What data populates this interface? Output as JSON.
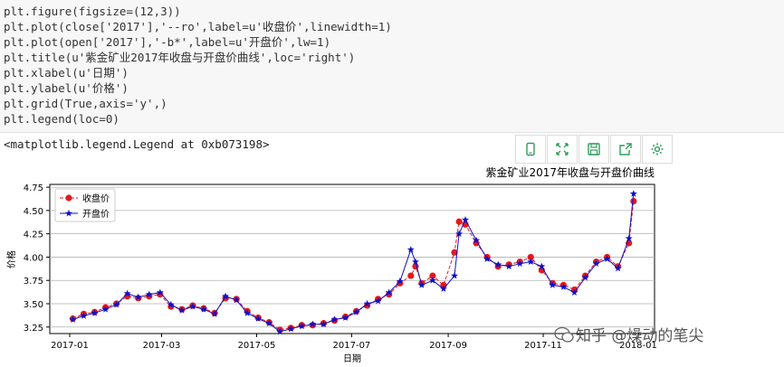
{
  "code": {
    "lines": [
      "plt.figure(figsize=(12,3))",
      "plt.plot(close['2017'],'--ro',label=u'收盘价',linewidth=1)",
      "plt.plot(open['2017'],'-b*',label=u'开盘价',lw=1)",
      "plt.title(u'紫金矿业2017年收盘与开盘价曲线',loc='right')",
      "plt.xlabel(u'日期')",
      "plt.ylabel(u'价格')",
      "plt.grid(True,axis='y',)",
      "plt.legend(loc=0)"
    ]
  },
  "output": {
    "text": "<matplotlib.legend.Legend at 0xb073198>"
  },
  "toolbar": {
    "icons": [
      "tablet-icon",
      "expand-icon",
      "save-icon",
      "share-icon",
      "gear-icon"
    ],
    "color": "#2e9d5b"
  },
  "watermark": {
    "text": "知乎 @燥动的笔尖"
  },
  "chart_data": {
    "type": "line",
    "title": "紫金矿业2017年收盘与开盘价曲线",
    "xlabel": "日期",
    "ylabel": "价格",
    "ylim": [
      3.18,
      4.78
    ],
    "yticks": [
      3.25,
      3.5,
      3.75,
      4.0,
      4.25,
      4.5,
      4.75
    ],
    "ytick_labels": [
      "3.25",
      "3.50",
      "3.75",
      "4.00",
      "4.25",
      "4.50",
      "4.75"
    ],
    "xticks": [
      "2017-01",
      "2017-03",
      "2017-05",
      "2017-07",
      "2017-09",
      "2017-11",
      "2018-01"
    ],
    "grid": "y",
    "legend_position": "upper-left",
    "x_domain": [
      "2017-01-01",
      "2018-01-01"
    ],
    "series": [
      {
        "name": "收盘价",
        "color": "#e31a1c",
        "style": "dashed-circle",
        "points": [
          [
            "2017-01-03",
            3.34
          ],
          [
            "2017-01-10",
            3.39
          ],
          [
            "2017-01-17",
            3.41
          ],
          [
            "2017-01-24",
            3.46
          ],
          [
            "2017-01-31",
            3.5
          ],
          [
            "2017-02-07",
            3.58
          ],
          [
            "2017-02-14",
            3.56
          ],
          [
            "2017-02-21",
            3.58
          ],
          [
            "2017-02-28",
            3.6
          ],
          [
            "2017-03-07",
            3.47
          ],
          [
            "2017-03-14",
            3.44
          ],
          [
            "2017-03-21",
            3.48
          ],
          [
            "2017-03-28",
            3.45
          ],
          [
            "2017-04-04",
            3.4
          ],
          [
            "2017-04-11",
            3.56
          ],
          [
            "2017-04-18",
            3.55
          ],
          [
            "2017-04-25",
            3.42
          ],
          [
            "2017-05-02",
            3.35
          ],
          [
            "2017-05-09",
            3.3
          ],
          [
            "2017-05-16",
            3.22
          ],
          [
            "2017-05-23",
            3.24
          ],
          [
            "2017-05-30",
            3.27
          ],
          [
            "2017-06-06",
            3.27
          ],
          [
            "2017-06-13",
            3.29
          ],
          [
            "2017-06-20",
            3.32
          ],
          [
            "2017-06-27",
            3.36
          ],
          [
            "2017-07-04",
            3.42
          ],
          [
            "2017-07-11",
            3.48
          ],
          [
            "2017-07-18",
            3.55
          ],
          [
            "2017-07-25",
            3.6
          ],
          [
            "2017-08-01",
            3.72
          ],
          [
            "2017-08-08",
            3.8
          ],
          [
            "2017-08-11",
            3.9
          ],
          [
            "2017-08-15",
            3.72
          ],
          [
            "2017-08-22",
            3.8
          ],
          [
            "2017-08-29",
            3.7
          ],
          [
            "2017-09-05",
            4.05
          ],
          [
            "2017-09-08",
            4.38
          ],
          [
            "2017-09-12",
            4.35
          ],
          [
            "2017-09-19",
            4.15
          ],
          [
            "2017-09-26",
            4.0
          ],
          [
            "2017-10-03",
            3.9
          ],
          [
            "2017-10-10",
            3.92
          ],
          [
            "2017-10-17",
            3.95
          ],
          [
            "2017-10-24",
            4.0
          ],
          [
            "2017-10-31",
            3.86
          ],
          [
            "2017-11-07",
            3.72
          ],
          [
            "2017-11-14",
            3.7
          ],
          [
            "2017-11-21",
            3.65
          ],
          [
            "2017-11-28",
            3.8
          ],
          [
            "2017-12-05",
            3.95
          ],
          [
            "2017-12-12",
            4.0
          ],
          [
            "2017-12-19",
            3.9
          ],
          [
            "2017-12-26",
            4.15
          ],
          [
            "2017-12-29",
            4.6
          ]
        ]
      },
      {
        "name": "开盘价",
        "color": "#1010c8",
        "style": "solid-star",
        "points": [
          [
            "2017-01-03",
            3.33
          ],
          [
            "2017-01-10",
            3.37
          ],
          [
            "2017-01-17",
            3.4
          ],
          [
            "2017-01-24",
            3.44
          ],
          [
            "2017-01-31",
            3.49
          ],
          [
            "2017-02-07",
            3.61
          ],
          [
            "2017-02-14",
            3.57
          ],
          [
            "2017-02-21",
            3.6
          ],
          [
            "2017-02-28",
            3.62
          ],
          [
            "2017-03-07",
            3.49
          ],
          [
            "2017-03-14",
            3.43
          ],
          [
            "2017-03-21",
            3.47
          ],
          [
            "2017-03-28",
            3.44
          ],
          [
            "2017-04-04",
            3.39
          ],
          [
            "2017-04-11",
            3.58
          ],
          [
            "2017-04-18",
            3.54
          ],
          [
            "2017-04-25",
            3.4
          ],
          [
            "2017-05-02",
            3.34
          ],
          [
            "2017-05-09",
            3.29
          ],
          [
            "2017-05-16",
            3.2
          ],
          [
            "2017-05-23",
            3.23
          ],
          [
            "2017-05-30",
            3.26
          ],
          [
            "2017-06-06",
            3.28
          ],
          [
            "2017-06-13",
            3.28
          ],
          [
            "2017-06-20",
            3.33
          ],
          [
            "2017-06-27",
            3.35
          ],
          [
            "2017-07-04",
            3.41
          ],
          [
            "2017-07-11",
            3.5
          ],
          [
            "2017-07-18",
            3.53
          ],
          [
            "2017-07-25",
            3.62
          ],
          [
            "2017-08-01",
            3.74
          ],
          [
            "2017-08-08",
            4.08
          ],
          [
            "2017-08-11",
            3.95
          ],
          [
            "2017-08-15",
            3.7
          ],
          [
            "2017-08-22",
            3.75
          ],
          [
            "2017-08-29",
            3.66
          ],
          [
            "2017-09-05",
            3.8
          ],
          [
            "2017-09-08",
            4.25
          ],
          [
            "2017-09-12",
            4.4
          ],
          [
            "2017-09-19",
            4.18
          ],
          [
            "2017-09-26",
            3.98
          ],
          [
            "2017-10-03",
            3.92
          ],
          [
            "2017-10-10",
            3.9
          ],
          [
            "2017-10-17",
            3.93
          ],
          [
            "2017-10-24",
            3.95
          ],
          [
            "2017-10-31",
            3.9
          ],
          [
            "2017-11-07",
            3.7
          ],
          [
            "2017-11-14",
            3.68
          ],
          [
            "2017-11-21",
            3.62
          ],
          [
            "2017-11-28",
            3.78
          ],
          [
            "2017-12-05",
            3.93
          ],
          [
            "2017-12-12",
            3.98
          ],
          [
            "2017-12-19",
            3.88
          ],
          [
            "2017-12-26",
            4.2
          ],
          [
            "2017-12-29",
            4.68
          ]
        ]
      }
    ]
  }
}
